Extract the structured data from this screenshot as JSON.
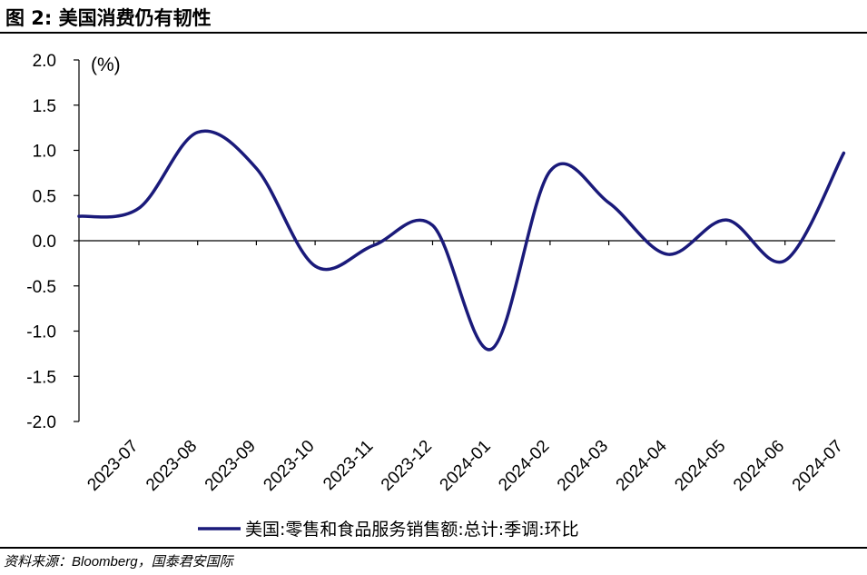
{
  "figure": {
    "title": "图 2:  美国消费仍有韧性",
    "source_prefix": "资料来源：",
    "source_name": "Bloomberg",
    "source_suffix": "，国泰君安国际"
  },
  "colors": {
    "series": "#1a1a7a",
    "axis": "#000000"
  },
  "chart_data": {
    "type": "line",
    "unit_label": "(%)",
    "ylim": [
      -2.0,
      2.0
    ],
    "yticks": [
      "2.0",
      "1.5",
      "1.0",
      "0.5",
      "0.0",
      "-0.5",
      "-1.0",
      "-1.5",
      "-2.0"
    ],
    "ytick_values": [
      2.0,
      1.5,
      1.0,
      0.5,
      0.0,
      -0.5,
      -1.0,
      -1.5,
      -2.0
    ],
    "categories": [
      "2023-07",
      "2023-08",
      "2023-09",
      "2023-10",
      "2023-11",
      "2023-12",
      "2024-01",
      "2024-02",
      "2024-03",
      "2024-04",
      "2024-05",
      "2024-06",
      "2024-07"
    ],
    "grid": false,
    "legend_position": "bottom",
    "series": [
      {
        "name": "美国:零售和食品服务销售额:总计:季调:环比",
        "x": [
          "2023-06",
          "2023-07",
          "2023-08",
          "2023-09",
          "2023-10",
          "2023-11",
          "2023-12",
          "2024-01",
          "2024-02",
          "2024-03",
          "2024-04",
          "2024-05",
          "2024-06",
          "2024-07"
        ],
        "values": [
          0.27,
          0.36,
          1.2,
          0.8,
          -0.28,
          -0.05,
          0.17,
          -1.2,
          0.77,
          0.42,
          -0.15,
          0.23,
          -0.22,
          0.97
        ]
      }
    ]
  }
}
